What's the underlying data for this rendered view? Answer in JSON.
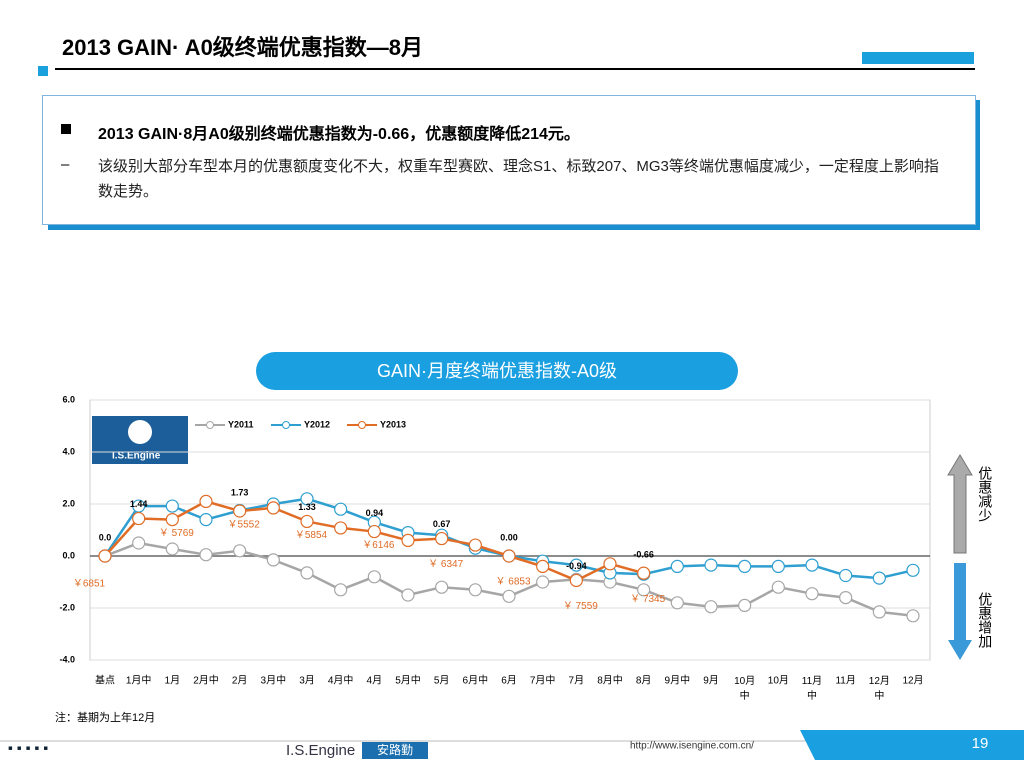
{
  "header": {
    "title": "2013 GAIN· A0级终端优惠指数—8月"
  },
  "summary": {
    "headline": "2013 GAIN·8月A0级别终端优惠指数为-0.66，优惠额度降低214元。",
    "detail": "该级别大部分车型本月的优惠额度变化不大，权重车型赛欧、理念S1、标致207、MG3等终端优惠幅度减少，一定程度上影响指数走势。"
  },
  "chart_data": {
    "type": "line",
    "title": "GAIN·月度终端优惠指数-A0级",
    "logo_text": "I.S.Engine",
    "categories": [
      "基点",
      "1月中",
      "1月",
      "2月中",
      "2月",
      "3月中",
      "3月",
      "4月中",
      "4月",
      "5月中",
      "5月",
      "6月中",
      "6月",
      "7月中",
      "7月",
      "8月中",
      "8月",
      "9月中",
      "9月",
      "10月中",
      "10月",
      "11月中",
      "11月",
      "12月中",
      "12月"
    ],
    "ylim": [
      -4,
      6
    ],
    "yticks": [
      {
        "value": -4,
        "label": "-4.0"
      },
      {
        "value": -2,
        "label": "-2.0"
      },
      {
        "value": 0,
        "label": "0.0"
      },
      {
        "value": 2,
        "label": "2.0"
      },
      {
        "value": 4,
        "label": "4.0"
      },
      {
        "value": 6,
        "label": "6.0"
      }
    ],
    "grid": true,
    "series": [
      {
        "name": "Y2011",
        "color": "#a6a6a6",
        "values": [
          0,
          0.5,
          0.27,
          0.05,
          0.2,
          -0.15,
          -0.65,
          -1.3,
          -0.8,
          -1.5,
          -1.2,
          -1.3,
          -1.55,
          -1.0,
          -0.9,
          -1.0,
          -1.3,
          -1.8,
          -1.95,
          -1.9,
          -1.2,
          -1.45,
          -1.6,
          -2.15,
          -2.3
        ]
      },
      {
        "name": "Y2012",
        "color": "#2e9fd0",
        "values": [
          0,
          1.92,
          1.92,
          1.4,
          1.75,
          2.0,
          2.2,
          1.8,
          1.3,
          0.9,
          0.8,
          0.3,
          0.0,
          -0.2,
          -0.35,
          -0.65,
          -0.7,
          -0.4,
          -0.35,
          -0.4,
          -0.4,
          -0.35,
          -0.75,
          -0.85,
          -0.55
        ]
      },
      {
        "name": "Y2013",
        "color": "#e06c26",
        "values": [
          0,
          1.44,
          1.4,
          2.1,
          1.73,
          1.85,
          1.33,
          1.08,
          0.94,
          0.6,
          0.67,
          0.42,
          0.0,
          -0.4,
          -0.94,
          -0.3,
          -0.66,
          null,
          null,
          null,
          null,
          null,
          null,
          null,
          null
        ],
        "value_labels": [
          "0.0",
          "1.44",
          null,
          null,
          "1.73",
          null,
          "1.33",
          null,
          "0.94",
          null,
          "0.67",
          null,
          "0.00",
          null,
          "-0.94",
          null,
          "-0.66",
          null,
          null,
          null,
          null,
          null,
          null,
          null,
          null
        ],
        "price_labels": [
          "￥6851",
          null,
          "￥ 5769",
          null,
          "￥5552",
          null,
          "￥5854",
          null,
          "￥6146",
          null,
          "￥ 6347",
          null,
          "￥ 6853",
          null,
          "￥ 7559",
          null,
          "￥ 7345",
          null,
          null,
          null,
          null,
          null,
          null,
          null,
          null
        ]
      }
    ]
  },
  "side_labels": {
    "up": "优惠减少",
    "down": "优惠增加"
  },
  "note": "注：基期为上年12月",
  "footer": {
    "brand": "I.S.Engine",
    "brand_cn": "安路勤",
    "url": "http://www.isengine.com.cn/",
    "page": "19"
  }
}
